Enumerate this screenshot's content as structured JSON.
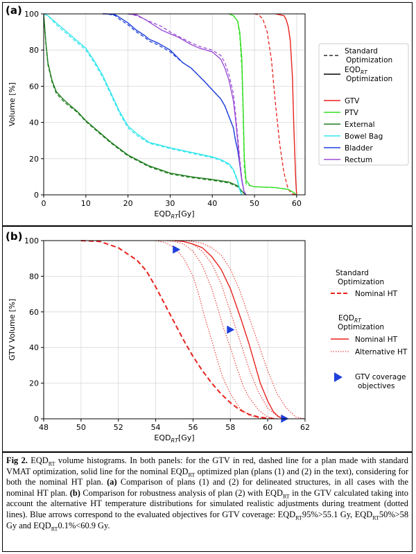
{
  "figure": {
    "caption_label": "Fig 2.",
    "caption_parts": [
      {
        "t": "Fig 2.",
        "b": true
      },
      {
        "t": " EQD",
        "b": false
      },
      {
        "t": "RT",
        "b": false,
        "sub": true
      },
      {
        "t": " volume histograms. In both panels: for the GTV in red, dashed line for a plan made with standard VMAT optimization, solid line for the nominal EQD",
        "b": false
      },
      {
        "t": "RT",
        "b": false,
        "sub": true
      },
      {
        "t": " optimized plan (plans (1) and (2) in the text), considering for both the nominal HT plan. ",
        "b": false
      },
      {
        "t": "(a)",
        "b": true
      },
      {
        "t": " Comparison of plans (1) and (2) for delineated structures, in all cases with the nominal HT plan. ",
        "b": false
      },
      {
        "t": "(b)",
        "b": true
      },
      {
        "t": " Comparison for robustness analysis of plan (2) with EQD",
        "b": false
      },
      {
        "t": "RT",
        "b": false,
        "sub": true
      },
      {
        "t": " in the GTV calculated taking into account the alternative HT temperature distributions for simulated realistic adjustments during treatment (dotted lines). Blue arrows correspond to the evaluated objectives for GTV coverage: EQD",
        "b": false
      },
      {
        "t": "RT",
        "b": false,
        "sub": true
      },
      {
        "t": "95%>55.1 Gy, EQD",
        "b": false
      },
      {
        "t": "RT",
        "b": false,
        "sub": true
      },
      {
        "t": "50%>58 Gy and EQD",
        "b": false
      },
      {
        "t": "RT",
        "b": false,
        "sub": true
      },
      {
        "t": "0.1%<60.9 Gy.",
        "b": false
      }
    ]
  },
  "chart_data": [
    {
      "panel_label": "(a)",
      "type": "line",
      "xlabel": "EQD_RT[Gy]",
      "ylabel": "Volume [%]",
      "xlim": [
        0,
        62
      ],
      "ylim": [
        0,
        100
      ],
      "xticks": [
        0,
        10,
        20,
        30,
        40,
        50,
        60
      ],
      "yticks": [
        0,
        20,
        40,
        60,
        80,
        100
      ],
      "grid": true,
      "legend_position": "right",
      "legend_styles": [
        {
          "label_lines": [
            "Standard",
            "Optimization"
          ],
          "style": "dashed"
        },
        {
          "label_lines": [
            "EQD_RT",
            "Optimization"
          ],
          "style": "solid"
        }
      ],
      "series": [
        {
          "name": "GTV",
          "color": "#e8211c",
          "x": [
            55,
            56,
            57,
            57.5,
            58,
            58.5,
            59,
            59.3,
            59.6,
            59.8,
            60
          ],
          "y": [
            100,
            99.5,
            99,
            97,
            93,
            85,
            65,
            40,
            20,
            8,
            0
          ],
          "dashed_x": [
            50,
            51,
            52,
            53,
            54,
            55,
            56,
            57,
            58,
            59,
            60
          ],
          "dashed_y": [
            100,
            99.5,
            97,
            90,
            75,
            50,
            28,
            12,
            3,
            0.5,
            0
          ]
        },
        {
          "name": "PTV",
          "color": "#33dd22",
          "x": [
            44,
            45,
            46,
            46.5,
            47,
            47.3,
            47.6,
            48,
            49,
            50,
            55,
            58,
            59.5,
            60
          ],
          "y": [
            100,
            99,
            96,
            90,
            75,
            50,
            20,
            8,
            5,
            4.5,
            4,
            3,
            1,
            0
          ],
          "dashed_x": [
            44,
            45,
            46,
            46.5,
            47,
            47.3,
            47.6,
            48,
            49,
            50,
            55,
            58,
            59.5,
            60
          ],
          "dashed_y": [
            100,
            99,
            96,
            88,
            70,
            45,
            15,
            6,
            5,
            4.5,
            4,
            3,
            1,
            0
          ]
        },
        {
          "name": "External",
          "color": "#1e7d1e",
          "x": [
            0,
            0.5,
            1,
            2,
            3,
            5,
            8,
            10,
            13,
            16,
            20,
            25,
            30,
            35,
            40,
            44,
            46,
            47,
            48
          ],
          "y": [
            100,
            85,
            73,
            63,
            57,
            52,
            46,
            41,
            35,
            29,
            22,
            16,
            12,
            10,
            8.5,
            7,
            5,
            2,
            0
          ],
          "dashed_x": [
            0,
            0.5,
            1,
            2,
            3,
            5,
            8,
            10,
            13,
            16,
            20,
            25,
            30,
            35,
            40,
            44,
            46,
            47,
            48
          ],
          "dashed_y": [
            100,
            84,
            72,
            62,
            56,
            51,
            45.5,
            40.5,
            34.5,
            28.5,
            21.5,
            15.5,
            11.5,
            9.5,
            8,
            6.5,
            4.5,
            1.5,
            0
          ]
        },
        {
          "name": "Bowel Bag",
          "color": "#33e6ee",
          "x": [
            0,
            1,
            3,
            5,
            8,
            10,
            12,
            14,
            16,
            18,
            20,
            22,
            25,
            30,
            35,
            40,
            42,
            44,
            45,
            46,
            46.5,
            47
          ],
          "y": [
            100,
            99,
            95,
            91,
            85,
            81,
            74,
            66,
            56,
            46,
            38,
            34,
            29,
            26,
            23.5,
            21,
            19.5,
            17,
            14,
            8,
            3,
            0
          ],
          "dashed_x": [
            0,
            1,
            3,
            5,
            8,
            10,
            12,
            14,
            16,
            18,
            20,
            22,
            25,
            30,
            35,
            40,
            42,
            44,
            45,
            46,
            46.5,
            47
          ],
          "dashed_y": [
            100,
            99,
            94,
            90,
            84,
            80,
            73,
            65,
            55,
            45,
            37,
            33,
            28.5,
            25.5,
            23,
            20.5,
            19,
            16.5,
            13.5,
            7,
            2.5,
            0
          ]
        },
        {
          "name": "Bladder",
          "color": "#1f3fdc",
          "x": [
            14,
            15,
            17,
            18,
            20,
            22,
            24,
            25,
            27,
            30,
            33,
            35,
            38,
            40,
            42,
            43,
            44,
            45,
            45.5,
            46,
            46.5,
            47,
            47.5,
            48
          ],
          "y": [
            100,
            100,
            99.5,
            98,
            95,
            91,
            88,
            86,
            84,
            80,
            73,
            70,
            63,
            58,
            53,
            49,
            43,
            37,
            30,
            25,
            17,
            8,
            2,
            0
          ],
          "dashed_x": [
            14,
            15,
            17,
            18,
            20,
            22,
            24,
            25,
            27,
            30,
            33,
            35,
            38,
            40,
            42,
            43,
            44,
            45,
            45.5,
            46,
            46.5,
            47,
            47.5,
            48
          ],
          "dashed_y": [
            100,
            100,
            99,
            97,
            94,
            90,
            87,
            85,
            83,
            79,
            73,
            70,
            63,
            58,
            53,
            49,
            43,
            37,
            30,
            25,
            17,
            8,
            2,
            0
          ]
        },
        {
          "name": "Rectum",
          "color": "#9b4fd6",
          "x": [
            20,
            22,
            24,
            26,
            28,
            30,
            32,
            35,
            37,
            40,
            42,
            43,
            44,
            45,
            45.5,
            46,
            46.5,
            47,
            47.5,
            48
          ],
          "y": [
            100,
            99.5,
            97,
            94,
            91,
            89,
            87,
            83,
            81,
            79,
            75,
            70,
            63,
            52,
            42,
            30,
            18,
            8,
            2,
            0
          ],
          "dashed_x": [
            20,
            22,
            24,
            26,
            28,
            30,
            32,
            35,
            37,
            40,
            42,
            43,
            44,
            45,
            45.5,
            46,
            46.5,
            47,
            47.5,
            48
          ],
          "dashed_y": [
            100,
            99,
            97,
            95,
            93,
            90,
            87.5,
            84,
            82,
            80,
            77,
            73,
            66,
            56,
            45,
            33,
            20,
            9,
            2,
            0
          ]
        }
      ]
    },
    {
      "panel_label": "(b)",
      "type": "line",
      "xlabel": "EQD_RT[Gy]",
      "ylabel": "GTV Volume [%]",
      "xlim": [
        48,
        62
      ],
      "ylim": [
        0,
        100
      ],
      "xticks": [
        48,
        50,
        52,
        54,
        56,
        58,
        60,
        62
      ],
      "yticks": [
        0,
        20,
        40,
        60,
        80,
        100
      ],
      "grid": true,
      "legend_position": "right",
      "legend_groups": [
        {
          "title_lines": [
            "Standard",
            "Optimization"
          ],
          "items": [
            {
              "label": "Nominal HT",
              "style": "dashed"
            }
          ]
        },
        {
          "title_lines": [
            "EQD_RT",
            "Optimization"
          ],
          "items": [
            {
              "label": "Nominal HT",
              "style": "solid"
            },
            {
              "label": "Alternative HT",
              "style": "dotted"
            }
          ]
        },
        {
          "title_lines": [
            "GTV coverage",
            "objectives"
          ],
          "items": [],
          "marker": "triangle-right"
        }
      ],
      "series": [
        {
          "name": "Nominal HT (Standard Optimization)",
          "style": "dashed",
          "color": "#e8211c",
          "x": [
            50,
            51,
            52,
            53,
            53.5,
            54,
            54.5,
            55,
            55.5,
            56,
            56.5,
            57,
            57.5,
            58,
            58.5,
            59,
            59.5,
            60,
            60.5
          ],
          "y": [
            100,
            99.5,
            96,
            89,
            83,
            74,
            64,
            54,
            44,
            35,
            27,
            20,
            14,
            9,
            5,
            2.5,
            1,
            0.3,
            0
          ]
        },
        {
          "name": "Nominal HT (EQD_RT Optimization)",
          "style": "solid",
          "color": "#e8211c",
          "x": [
            55,
            55.5,
            56,
            56.5,
            57,
            57.5,
            58,
            58.3,
            58.6,
            59,
            59.3,
            59.6,
            60,
            60.3,
            60.6,
            61
          ],
          "y": [
            100,
            99.5,
            98,
            96,
            91,
            84,
            73,
            64,
            55,
            42,
            31,
            20,
            10,
            4,
            1,
            0
          ]
        },
        {
          "name": "Alternative HT 1",
          "style": "dotted",
          "color": "#e8211c",
          "x": [
            54,
            54.5,
            55,
            55.5,
            56,
            56.3,
            56.6,
            57,
            57.3,
            57.6,
            58,
            58.5,
            59,
            59.5,
            60
          ],
          "y": [
            100,
            99,
            96,
            90,
            80,
            70,
            58,
            44,
            33,
            23,
            14,
            6,
            2,
            0.5,
            0
          ]
        },
        {
          "name": "Alternative HT 2",
          "style": "dotted",
          "color": "#e8211c",
          "x": [
            54.5,
            55,
            55.5,
            56,
            56.5,
            57,
            57.3,
            57.6,
            58,
            58.3,
            58.7,
            59,
            59.5,
            60,
            60.5
          ],
          "y": [
            100,
            99.5,
            98,
            94,
            86,
            73,
            63,
            52,
            40,
            30,
            18,
            12,
            5,
            1,
            0
          ]
        },
        {
          "name": "Alternative HT 3",
          "style": "dotted",
          "color": "#e8211c",
          "x": [
            55,
            55.5,
            56,
            56.5,
            57,
            57.5,
            58,
            58.5,
            59,
            59.5,
            60,
            60.5,
            61
          ],
          "y": [
            100,
            99.5,
            98,
            94,
            87,
            76,
            60,
            44,
            28,
            15,
            6,
            1.5,
            0
          ]
        },
        {
          "name": "Alternative HT 4",
          "style": "dotted",
          "color": "#e8211c",
          "x": [
            55.5,
            56,
            56.5,
            57,
            57.5,
            58,
            58.5,
            59,
            59.5,
            60,
            60.5,
            61,
            61.5,
            62
          ],
          "y": [
            100,
            99.5,
            98.5,
            96,
            92,
            84,
            72,
            57,
            42,
            27,
            14,
            6,
            1,
            0
          ]
        }
      ],
      "markers": {
        "name": "GTV coverage objectives",
        "color": "#1f3fdc",
        "shape": "triangle-right",
        "points": [
          {
            "x": 55.1,
            "y": 95
          },
          {
            "x": 58,
            "y": 50
          },
          {
            "x": 60.9,
            "y": 0.1
          }
        ]
      }
    }
  ]
}
